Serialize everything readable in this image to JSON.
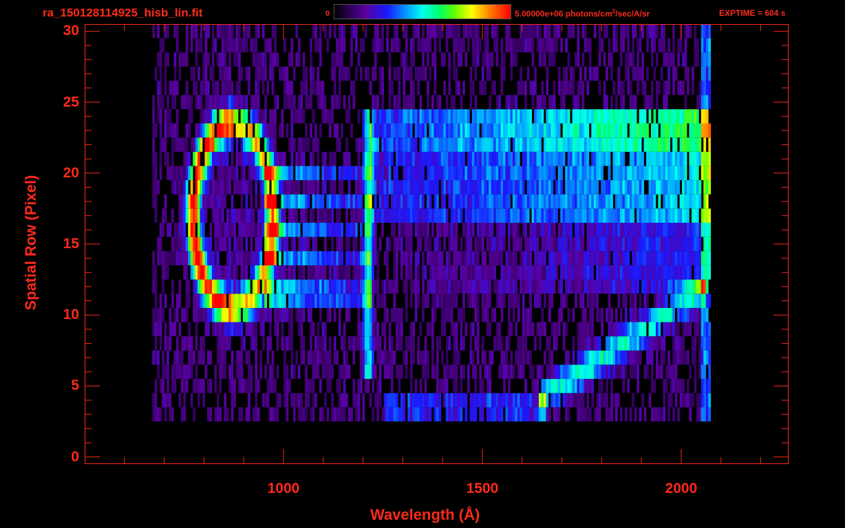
{
  "header": {
    "file_title": "ra_150128114925_hisb_lin.fit",
    "colorbar_min": "0",
    "colorbar_max_unit_pre": "5.00000e+06 photons/cm",
    "colorbar_unit_sup": "2",
    "colorbar_unit_post": "/sec/A/sr",
    "exptime": "EXPTIME = 604 s"
  },
  "colors": {
    "axis": "#ff2a1a",
    "background": "#000000"
  },
  "chart_data": {
    "type": "heatmap",
    "title": "",
    "xlabel": "Wavelength (Å)",
    "ylabel": "Spatial Row (Pixel)",
    "xlim": [
      500,
      2270
    ],
    "ylim": [
      -0.5,
      30.5
    ],
    "x_ticks": [
      1000,
      1500,
      2000
    ],
    "x_tick_labels": [
      "1000",
      "1500",
      "2000"
    ],
    "y_ticks": [
      0,
      5,
      10,
      15,
      20,
      25,
      30
    ],
    "y_tick_labels": [
      "0",
      "5",
      "10",
      "15",
      "20",
      "25",
      "30"
    ],
    "colorbar_range": [
      0,
      5000000
    ],
    "data_extent_x": [
      670,
      2070
    ],
    "data_extent_y": [
      3,
      30
    ],
    "features": [
      {
        "name": "bright ring",
        "center": [
          870,
          17
        ],
        "x_radius": 100,
        "y_radius": 6.5,
        "peak": "red"
      },
      {
        "name": "line",
        "x": 1210,
        "rows": [
          6,
          24
        ],
        "intensity": "cyan"
      },
      {
        "name": "upper band",
        "x_range": [
          1200,
          2060
        ],
        "rows": [
          18,
          24
        ],
        "intensity": "cyan-green"
      },
      {
        "name": "diagonal arc",
        "from": [
          1640,
          4
        ],
        "to": [
          2060,
          12
        ],
        "intensity": "blue-cyan"
      }
    ]
  }
}
